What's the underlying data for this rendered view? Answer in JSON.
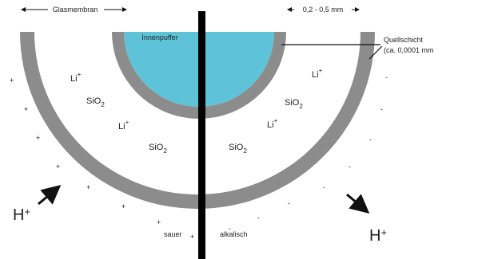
{
  "dimensions": {
    "membrane": "Glasmembran",
    "thickness": "0,2 - 0,5 mm"
  },
  "inner_buffer": "Innenpuffer",
  "swelling_layer": {
    "title": "Quellschicht",
    "note": "(ca. 0,0001 mm"
  },
  "species": [
    {
      "base": "Li",
      "sup": "+",
      "sub": ""
    },
    {
      "base": "SiO",
      "sup": "",
      "sub": "2"
    },
    {
      "base": "Li",
      "sup": "+",
      "sub": ""
    },
    {
      "base": "SiO",
      "sup": "",
      "sub": "2"
    },
    {
      "base": "Li",
      "sup": "+",
      "sub": ""
    },
    {
      "base": "SiO",
      "sup": "",
      "sub": "2"
    },
    {
      "base": "Li",
      "sup": "+",
      "sub": ""
    },
    {
      "base": "SiO",
      "sup": "",
      "sub": "2"
    }
  ],
  "protons": [
    {
      "base": "H",
      "sup": "+"
    },
    {
      "base": "H",
      "sup": "+"
    }
  ],
  "sides": {
    "left": "sauer",
    "right": "alkalisch"
  },
  "charges_left": [
    "+",
    "+",
    "+",
    "+",
    "+",
    "+",
    "+",
    "+"
  ],
  "charges_right": [
    "-",
    "-",
    "-",
    "-",
    "-",
    "-",
    "-",
    "-"
  ]
}
